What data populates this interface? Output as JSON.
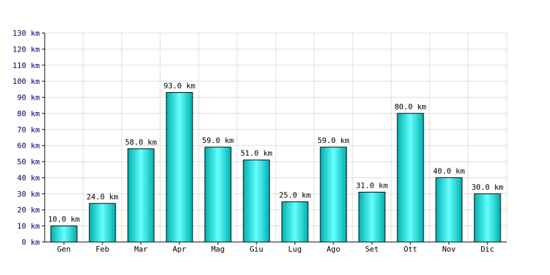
{
  "chart_data": {
    "type": "bar",
    "categories": [
      "Gen",
      "Feb",
      "Mar",
      "Apr",
      "Mag",
      "Giu",
      "Lug",
      "Ago",
      "Set",
      "Ott",
      "Nov",
      "Dic"
    ],
    "values": [
      10.0,
      24.0,
      58.0,
      93.0,
      59.0,
      51.0,
      25.0,
      59.0,
      31.0,
      80.0,
      40.0,
      30.0
    ],
    "value_labels": [
      "10.0 km",
      "24.0 km",
      "58.0 km",
      "93.0 km",
      "59.0 km",
      "51.0 km",
      "25.0 km",
      "59.0 km",
      "31.0 km",
      "80.0 km",
      "40.0 km",
      "30.0 km"
    ],
    "y_ticks": [
      0,
      10,
      20,
      30,
      40,
      50,
      60,
      70,
      80,
      90,
      100,
      110,
      120,
      130
    ],
    "y_tick_labels": [
      "0 km",
      "10 km",
      "20 km",
      "30 km",
      "40 km",
      "50 km",
      "60 km",
      "70 km",
      "80 km",
      "90 km",
      "100 km",
      "110 km",
      "120 km",
      "130 km"
    ],
    "ylim": [
      0,
      130
    ],
    "unit": "km",
    "title": "",
    "xlabel": "",
    "ylabel": "",
    "grid": true,
    "colors": {
      "bar_fill_dark": "#00b0b0",
      "bar_fill_light": "#66ffff",
      "bar_stroke": "#000000",
      "grid": "#dddddd",
      "axis": "#000000",
      "tick_text": "#000066"
    }
  }
}
